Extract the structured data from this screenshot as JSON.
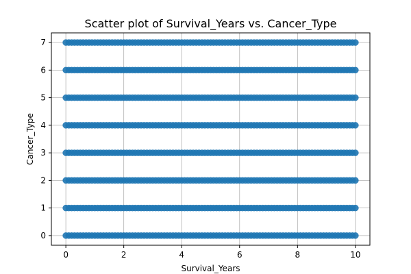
{
  "chart_data": {
    "type": "scatter",
    "title": "Scatter plot of Survival_Years vs. Cancer_Type",
    "xlabel": "Survival_Years",
    "ylabel": "Cancer_Type",
    "xlim": [
      -0.5,
      10.5
    ],
    "ylim": [
      -0.35,
      7.35
    ],
    "xticks": [
      0,
      2,
      4,
      6,
      8,
      10
    ],
    "yticks": [
      0,
      1,
      2,
      3,
      4,
      5,
      6,
      7
    ],
    "grid": true,
    "marker_color": "#1f77b4",
    "series": [
      {
        "x_range": [
          0,
          10
        ],
        "x_step": 0.1,
        "y_values": [
          0,
          1,
          2,
          3,
          4,
          5,
          6,
          7
        ]
      }
    ]
  }
}
